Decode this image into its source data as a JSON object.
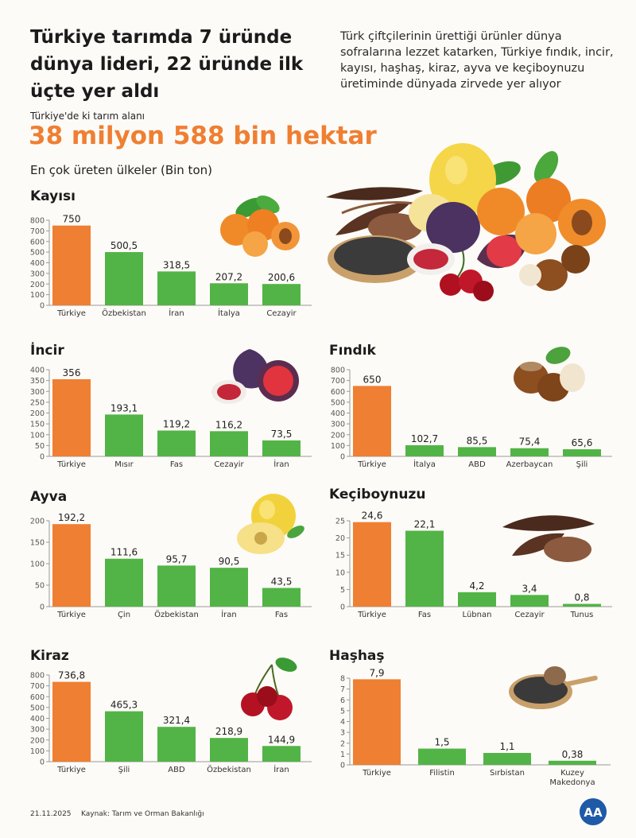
{
  "headline": "Türkiye tarımda 7 üründe dünya lideri, 22 üründe ilk üçte yer aldı",
  "intro": "Türk çiftçilerinin ürettiği ürünler dünya sofralarına lezzet katarken, Türkiye fındık, incir, kayısı, haşhaş, kiraz, ayva ve keçiboynuzu üretiminde dünyada zirvede yer alıyor",
  "area_label": "Türkiye'de ki tarım alanı",
  "area_value": "38 milyon 588 bin hektar",
  "subtitle": "En çok üreten ülkeler (Bin ton)",
  "footer": {
    "date": "21.11.2025",
    "source": "Kaynak: Tarım ve Orman Bakanlığı",
    "logo_text": "AA"
  },
  "colors": {
    "highlight": "#ef7f32",
    "bar": "#52b446",
    "axis": "#9a9a9a",
    "title_orange": "#ef7f32"
  },
  "icons": [
    "fruit-collage-illustration",
    "apricot-icon",
    "fig-icon",
    "hazelnut-icon",
    "quince-icon",
    "carob-icon",
    "cherry-icon",
    "poppy-seed-icon",
    "aa-logo-icon"
  ],
  "chart_data": [
    {
      "id": "kayisi",
      "type": "bar",
      "title": "Kayısı",
      "categories": [
        "Türkiye",
        "Özbekistan",
        "İran",
        "İtalya",
        "Cezayir"
      ],
      "values": [
        750,
        500.5,
        318.5,
        207.2,
        200.6
      ],
      "labels": [
        "750",
        "500,5",
        "318,5",
        "207,2",
        "200,6"
      ],
      "ylim": [
        0,
        800
      ],
      "yticks": [
        0,
        100,
        200,
        300,
        400,
        500,
        600,
        700,
        800
      ],
      "highlight_index": 0
    },
    {
      "id": "incir",
      "type": "bar",
      "title": "İncir",
      "categories": [
        "Türkiye",
        "Mısır",
        "Fas",
        "Cezayir",
        "İran"
      ],
      "values": [
        356,
        193.1,
        119.2,
        116.2,
        73.5
      ],
      "labels": [
        "356",
        "193,1",
        "119,2",
        "116,2",
        "73,5"
      ],
      "ylim": [
        0,
        400
      ],
      "yticks": [
        0,
        50,
        100,
        150,
        200,
        250,
        300,
        350,
        400
      ],
      "highlight_index": 0
    },
    {
      "id": "findik",
      "type": "bar",
      "title": "Fındık",
      "categories": [
        "Türkiye",
        "İtalya",
        "ABD",
        "Azerbaycan",
        "Şili"
      ],
      "values": [
        650,
        102.7,
        85.5,
        75.4,
        65.6
      ],
      "labels": [
        "650",
        "102,7",
        "85,5",
        "75,4",
        "65,6"
      ],
      "ylim": [
        0,
        800
      ],
      "yticks": [
        0,
        100,
        200,
        300,
        400,
        500,
        600,
        700,
        800
      ],
      "highlight_index": 0
    },
    {
      "id": "ayva",
      "type": "bar",
      "title": "Ayva",
      "categories": [
        "Türkiye",
        "Çin",
        "Özbekistan",
        "İran",
        "Fas"
      ],
      "values": [
        192.2,
        111.6,
        95.7,
        90.5,
        43.5
      ],
      "labels": [
        "192,2",
        "111,6",
        "95,7",
        "90,5",
        "43,5"
      ],
      "ylim": [
        0,
        200
      ],
      "yticks": [
        0,
        50,
        100,
        150,
        200
      ],
      "highlight_index": 0
    },
    {
      "id": "keciboynuzu",
      "type": "bar",
      "title": "Keçiboynuzu",
      "categories": [
        "Türkiye",
        "Fas",
        "Lübnan",
        "Cezayir",
        "Tunus"
      ],
      "values": [
        24.6,
        22.1,
        4.2,
        3.4,
        0.8
      ],
      "labels": [
        "24,6",
        "22,1",
        "4,2",
        "3,4",
        "0,8"
      ],
      "ylim": [
        0,
        25
      ],
      "yticks": [
        0,
        5,
        10,
        15,
        20,
        25
      ],
      "highlight_index": 0
    },
    {
      "id": "kiraz",
      "type": "bar",
      "title": "Kiraz",
      "categories": [
        "Türkiye",
        "Şili",
        "ABD",
        "Özbekistan",
        "İran"
      ],
      "values": [
        736.8,
        465.3,
        321.4,
        218.9,
        144.9
      ],
      "labels": [
        "736,8",
        "465,3",
        "321,4",
        "218,9",
        "144,9"
      ],
      "ylim": [
        0,
        800
      ],
      "yticks": [
        0,
        100,
        200,
        300,
        400,
        500,
        600,
        700,
        800
      ],
      "highlight_index": 0
    },
    {
      "id": "hashas",
      "type": "bar",
      "title": "Haşhaş",
      "categories": [
        "Türkiye",
        "Filistin",
        "Sırbistan",
        "Kuzey Makedonya"
      ],
      "values": [
        7.9,
        1.5,
        1.1,
        0.38
      ],
      "labels": [
        "7,9",
        "1,5",
        "1,1",
        "0,38"
      ],
      "ylim": [
        0,
        8
      ],
      "yticks": [
        0,
        1,
        2,
        3,
        4,
        5,
        6,
        7,
        8
      ],
      "highlight_index": 0
    }
  ]
}
